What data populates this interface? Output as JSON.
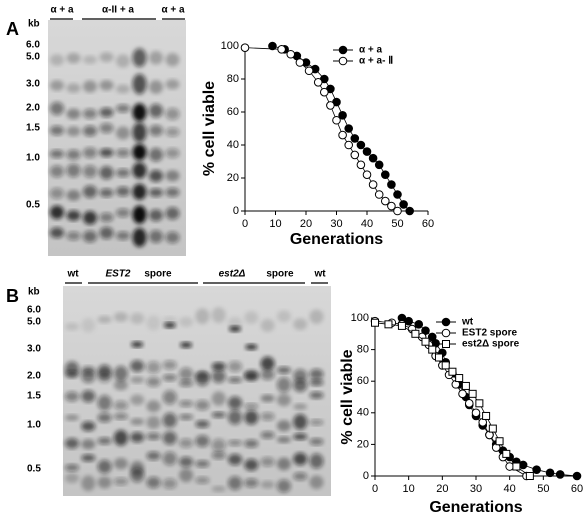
{
  "gels": [
    {
      "panel": "A",
      "kb": "kb",
      "markers": [
        "6.0",
        "5.0",
        "3.0",
        "2.0",
        "1.5",
        "1.0",
        "0.5"
      ],
      "lanes": [
        "α + a",
        "α-II + a",
        "α + a"
      ]
    },
    {
      "panel": "B",
      "kb": "kb",
      "markers": [
        "6.0",
        "5.0",
        "3.0",
        "2.0",
        "1.5",
        "1.0",
        "0.5"
      ],
      "lanes": [
        "wt",
        "EST2",
        "spore",
        "est2Δ",
        "spore",
        "wt"
      ]
    }
  ],
  "chart_data": [
    {
      "type": "line",
      "xlabel": "Generations",
      "ylabel": "% cell viable",
      "xlim": [
        0,
        60
      ],
      "ylim": [
        0,
        100
      ],
      "xticks": [
        0,
        10,
        20,
        30,
        40,
        50,
        60
      ],
      "yticks": [
        0,
        20,
        40,
        60,
        80,
        100
      ],
      "legend": "upper right",
      "series": [
        {
          "name": "α + a",
          "color": "#000000",
          "marker": "circle-filled",
          "x": [
            9,
            13,
            17,
            20,
            23,
            26,
            28,
            30,
            32,
            34,
            36,
            38,
            40,
            42,
            44,
            46,
            48,
            50,
            52,
            54
          ],
          "values": [
            100,
            98,
            94,
            90,
            86,
            80,
            74,
            66,
            58,
            50,
            44,
            40,
            36,
            32,
            28,
            22,
            16,
            10,
            4,
            0
          ]
        },
        {
          "name": "α + a- Ⅱ",
          "color": "#000000",
          "marker": "circle-open",
          "x": [
            0,
            12,
            15,
            18,
            21,
            24,
            26,
            28,
            30,
            32,
            34,
            36,
            38,
            40,
            42,
            44,
            46,
            48,
            50
          ],
          "values": [
            99,
            98,
            95,
            90,
            85,
            78,
            72,
            64,
            55,
            46,
            40,
            34,
            28,
            22,
            16,
            10,
            6,
            3,
            0
          ]
        }
      ]
    },
    {
      "type": "line",
      "xlabel": "Generations",
      "ylabel": "% cell viable",
      "xlim": [
        0,
        60
      ],
      "ylim": [
        0,
        100
      ],
      "xticks": [
        0,
        10,
        20,
        30,
        40,
        50,
        60
      ],
      "yticks": [
        0,
        20,
        40,
        60,
        80,
        100
      ],
      "legend": "upper center",
      "series": [
        {
          "name": "wt",
          "color": "#000000",
          "marker": "circle-filled",
          "x": [
            8,
            10,
            13,
            15,
            17,
            18,
            20,
            21,
            23,
            25,
            27,
            28,
            30,
            32,
            34,
            36,
            38,
            40,
            42,
            44,
            48,
            52,
            55,
            60
          ],
          "values": [
            100,
            98,
            96,
            92,
            88,
            84,
            78,
            72,
            65,
            58,
            50,
            45,
            38,
            32,
            26,
            20,
            16,
            12,
            9,
            7,
            4,
            2,
            1,
            0
          ]
        },
        {
          "name": "EST2 spore",
          "color": "#000000",
          "marker": "circle-open",
          "x": [
            0,
            5,
            8,
            11,
            14,
            16,
            18,
            20,
            22,
            24,
            26,
            28,
            30,
            32,
            34,
            36,
            38,
            40,
            45
          ],
          "values": [
            98,
            97,
            96,
            93,
            88,
            83,
            76,
            70,
            64,
            58,
            52,
            46,
            40,
            34,
            26,
            18,
            12,
            6,
            0
          ]
        },
        {
          "name": "est2Δ spore",
          "color": "#000000",
          "marker": "square-open",
          "x": [
            0,
            4,
            8,
            12,
            15,
            17,
            19,
            21,
            23,
            25,
            27,
            29,
            31,
            33,
            35,
            37,
            39,
            42,
            46
          ],
          "values": [
            97,
            96,
            95,
            90,
            85,
            80,
            75,
            70,
            66,
            62,
            57,
            52,
            46,
            38,
            30,
            22,
            14,
            6,
            0
          ]
        }
      ]
    }
  ]
}
